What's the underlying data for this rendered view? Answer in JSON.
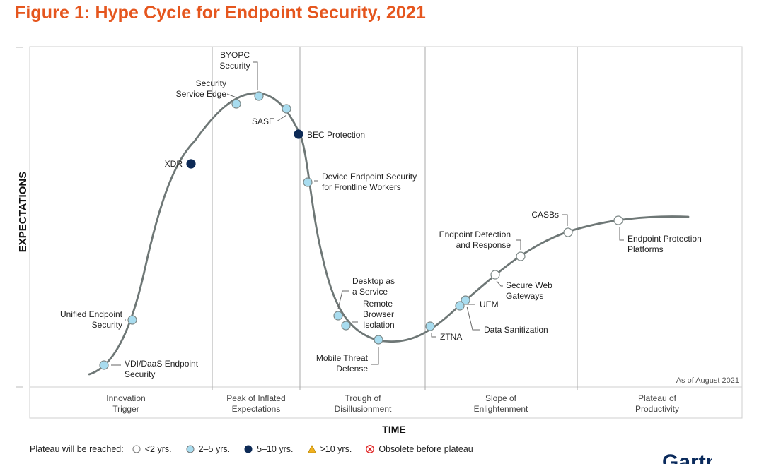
{
  "figure_title": "Figure 1: Hype Cycle for Endpoint Security, 2021",
  "colors": {
    "title": "#e5561e",
    "curve": "#6e7776",
    "dot_2_5": "#a8dcef",
    "dot_5_10": "#0d2a56",
    "dot_lt2": "#ffffff",
    "triangle": "#f2b11e",
    "obsolete": "#e02424"
  },
  "chart_data": {
    "type": "hype-cycle",
    "xlabel": "TIME",
    "ylabel": "EXPECTATIONS",
    "note": "As of August 2021",
    "phases": [
      "Innovation\nTrigger",
      "Peak of Inflated\nExpectations",
      "Trough of\nDisillusionment",
      "Slope of\nEnlightenment",
      "Plateau of\nProductivity"
    ],
    "technologies": [
      {
        "name": "VDI/DaaS Endpoint\nSecurity",
        "phase": "Innovation Trigger",
        "plateau": "2-5 yrs."
      },
      {
        "name": "Unified Endpoint\nSecurity",
        "phase": "Innovation Trigger",
        "plateau": "2-5 yrs."
      },
      {
        "name": "XDR",
        "phase": "Innovation Trigger",
        "plateau": "5-10 yrs."
      },
      {
        "name": "Security\nService Edge",
        "phase": "Peak of Inflated Expectations",
        "plateau": "2-5 yrs."
      },
      {
        "name": "BYOPC\nSecurity",
        "phase": "Peak of Inflated Expectations",
        "plateau": "2-5 yrs."
      },
      {
        "name": "SASE",
        "phase": "Peak of Inflated Expectations",
        "plateau": "2-5 yrs."
      },
      {
        "name": "BEC Protection",
        "phase": "Trough of Disillusionment",
        "plateau": "5-10 yrs."
      },
      {
        "name": "Device Endpoint Security\nfor Frontline Workers",
        "phase": "Trough of Disillusionment",
        "plateau": "2-5 yrs."
      },
      {
        "name": "Desktop as\na Service",
        "phase": "Trough of Disillusionment",
        "plateau": "2-5 yrs."
      },
      {
        "name": "Remote\nBrowser\nIsolation",
        "phase": "Trough of Disillusionment",
        "plateau": "2-5 yrs."
      },
      {
        "name": "Mobile Threat\nDefense",
        "phase": "Trough of Disillusionment",
        "plateau": "2-5 yrs."
      },
      {
        "name": "ZTNA",
        "phase": "Slope of Enlightenment",
        "plateau": "2-5 yrs."
      },
      {
        "name": "Data Sanitization",
        "phase": "Slope of Enlightenment",
        "plateau": "2-5 yrs."
      },
      {
        "name": "UEM",
        "phase": "Slope of Enlightenment",
        "plateau": "2-5 yrs."
      },
      {
        "name": "Secure Web\nGateways",
        "phase": "Slope of Enlightenment",
        "plateau": "<2 yrs."
      },
      {
        "name": "Endpoint Detection\nand Response",
        "phase": "Slope of Enlightenment",
        "plateau": "<2 yrs."
      },
      {
        "name": "CASBs",
        "phase": "Slope of Enlightenment",
        "plateau": "<2 yrs."
      },
      {
        "name": "Endpoint Protection\nPlatforms",
        "phase": "Plateau of Productivity",
        "plateau": "<2 yrs."
      }
    ]
  },
  "legend": {
    "title": "Plateau will be reached:",
    "items": [
      {
        "shape": "circle-white",
        "label": "<2 yrs."
      },
      {
        "shape": "circle-light",
        "label": "2–5 yrs."
      },
      {
        "shape": "circle-dark",
        "label": "5–10 yrs."
      },
      {
        "shape": "triangle",
        "label": ">10 yrs."
      },
      {
        "shape": "obsolete",
        "label": "Obsolete before plateau"
      }
    ]
  },
  "logo": {
    "text": "Gartner"
  }
}
